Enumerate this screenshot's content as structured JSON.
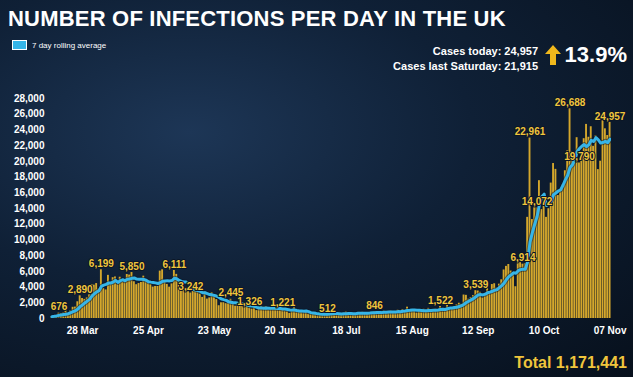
{
  "chart_data": {
    "type": "bar",
    "title": "NUMBER OF INFECTIONS PER DAY IN THE UK",
    "annotations": [
      "Cases today: 24,957",
      "Cases last Saturday: 21,915",
      "13.9%",
      "Total 1,171,441"
    ],
    "categories": [
      null,
      null,
      null,
      null,
      null,
      null,
      null,
      null,
      null,
      null,
      null,
      null,
      null,
      "28 Mar",
      null,
      null,
      null,
      null,
      null,
      null,
      null,
      null,
      null,
      null,
      null,
      null,
      null,
      null,
      null,
      null,
      null,
      null,
      null,
      null,
      null,
      null,
      null,
      null,
      null,
      null,
      null,
      "25 Apr",
      null,
      null,
      null,
      null,
      null,
      null,
      null,
      null,
      null,
      null,
      null,
      null,
      null,
      null,
      null,
      null,
      null,
      null,
      null,
      null,
      null,
      null,
      null,
      null,
      null,
      null,
      null,
      "23 May",
      null,
      null,
      null,
      null,
      null,
      null,
      null,
      null,
      null,
      null,
      null,
      null,
      null,
      null,
      null,
      null,
      null,
      null,
      null,
      null,
      null,
      null,
      null,
      null,
      null,
      null,
      null,
      "20 Jun",
      null,
      null,
      null,
      null,
      null,
      null,
      null,
      null,
      null,
      null,
      null,
      null,
      null,
      null,
      null,
      null,
      null,
      null,
      null,
      null,
      null,
      null,
      null,
      null,
      null,
      null,
      null,
      "18 Jul",
      null,
      null,
      null,
      null,
      null,
      null,
      null,
      null,
      null,
      null,
      null,
      null,
      null,
      null,
      null,
      null,
      null,
      null,
      null,
      null,
      null,
      null,
      null,
      null,
      null,
      null,
      null,
      "15 Aug",
      null,
      null,
      null,
      null,
      null,
      null,
      null,
      null,
      null,
      null,
      null,
      null,
      null,
      null,
      null,
      null,
      null,
      null,
      null,
      null,
      null,
      null,
      null,
      null,
      null,
      null,
      null,
      "12 Sep",
      null,
      null,
      null,
      null,
      null,
      null,
      null,
      null,
      null,
      null,
      null,
      null,
      null,
      null,
      null,
      null,
      null,
      null,
      null,
      null,
      null,
      null,
      null,
      null,
      null,
      null,
      null,
      "10 Oct",
      null,
      null,
      null,
      null,
      null,
      null,
      null,
      null,
      null,
      null,
      null,
      null,
      null,
      null,
      null,
      null,
      null,
      null,
      null,
      null,
      null,
      null,
      null,
      null,
      null,
      null,
      null,
      "07 Nov"
    ],
    "series": [
      {
        "type": "bar",
        "color": "#d4a72c",
        "values": [
          232,
          152,
          407,
          676,
          643,
          714,
          1035,
          665,
          967,
          1427,
          1452,
          2129,
          2890,
          2546,
          2433,
          2619,
          3009,
          4324,
          4244,
          4450,
          3735,
          6199,
          3802,
          3634,
          5491,
          4344,
          5195,
          5288,
          4342,
          5252,
          4603,
          4617,
          5599,
          5525,
          5850,
          4676,
          4301,
          4451,
          4583,
          5386,
          4913,
          4463,
          4309,
          3996,
          4076,
          4076,
          6032,
          6201,
          4806,
          4339,
          3985,
          4406,
          6111,
          5614,
          4649,
          3896,
          3923,
          3877,
          3403,
          3242,
          3446,
          3560,
          3451,
          3142,
          2684,
          3412,
          2472,
          2615,
          3287,
          2959,
          2409,
          1625,
          2004,
          2013,
          1887,
          2095,
          2445,
          1936,
          1570,
          1613,
          1871,
          1805,
          1650,
          1557,
          1326,
          1205,
          1387,
          1003,
          1266,
          1541,
          1425,
          1514,
          1056,
          1279,
          1115,
          1218,
          1346,
          1295,
          1221,
          958,
          874,
          653,
          1118,
          1380,
          890,
          901,
          815,
          689,
          829,
          576,
          544,
          624,
          516,
          352,
          581,
          630,
          642,
          512,
          820,
          650,
          530,
          598,
          538,
          463,
          687,
          827,
          726,
          580,
          445,
          560,
          769,
          767,
          798,
          747,
          685,
          581,
          763,
          846,
          880,
          744,
          743,
          938,
          670,
          892,
          950,
          871,
          758,
          1062,
          816,
          1148,
          1009,
          1441,
          1062,
          1012,
          1040,
          713,
          1089,
          812,
          1182,
          1033,
          1288,
          1041,
          853,
          1184,
          1048,
          1522,
          1276,
          1108,
          1715,
          1406,
          1295,
          1508,
          1735,
          1940,
          1813,
          2988,
          2948,
          2460,
          2659,
          2919,
          3539,
          3497,
          3330,
          2621,
          3105,
          3991,
          3395,
          4322,
          4422,
          3899,
          4368,
          4926,
          6178,
          6634,
          6874,
          6042,
          5693,
          4044,
          7143,
          7108,
          6914,
          6968,
          12872,
          22961,
          12594,
          14542,
          14072,
          17540,
          13864,
          15166,
          12872,
          13972,
          17234,
          19724,
          18980,
          15650,
          16171,
          16982,
          18804,
          21331,
          26688,
          21242,
          20530,
          23012,
          19790,
          20890,
          22885,
          24701,
          23065,
          24405,
          21915,
          23254,
          18950,
          20018,
          25177,
          24141,
          23287,
          24957
        ],
        "value_labels": [
          null,
          null,
          null,
          "676",
          null,
          null,
          null,
          null,
          null,
          null,
          null,
          null,
          "2,890",
          null,
          null,
          null,
          null,
          null,
          null,
          null,
          null,
          "6,199",
          null,
          null,
          null,
          null,
          null,
          null,
          null,
          null,
          null,
          null,
          null,
          null,
          "5,850",
          null,
          null,
          null,
          null,
          null,
          null,
          null,
          null,
          null,
          null,
          null,
          null,
          null,
          null,
          null,
          null,
          null,
          "6,111",
          null,
          null,
          null,
          null,
          null,
          null,
          "3,242",
          null,
          null,
          null,
          null,
          null,
          null,
          null,
          null,
          null,
          null,
          null,
          null,
          null,
          null,
          null,
          null,
          "2,445",
          null,
          null,
          null,
          null,
          null,
          null,
          null,
          "1,326",
          null,
          null,
          null,
          null,
          null,
          null,
          null,
          null,
          null,
          null,
          null,
          null,
          null,
          "1,221",
          null,
          null,
          null,
          null,
          null,
          null,
          null,
          null,
          null,
          null,
          null,
          null,
          null,
          null,
          null,
          null,
          null,
          null,
          "512",
          null,
          null,
          null,
          null,
          null,
          null,
          null,
          null,
          null,
          null,
          null,
          null,
          null,
          null,
          null,
          null,
          null,
          null,
          null,
          "846",
          null,
          null,
          null,
          null,
          null,
          null,
          null,
          null,
          null,
          null,
          null,
          null,
          null,
          null,
          null,
          null,
          null,
          null,
          null,
          null,
          null,
          null,
          null,
          null,
          null,
          null,
          null,
          "1,522",
          null,
          null,
          null,
          null,
          null,
          null,
          null,
          null,
          null,
          null,
          null,
          null,
          null,
          null,
          "3,539",
          null,
          null,
          null,
          null,
          null,
          null,
          null,
          null,
          null,
          null,
          null,
          null,
          null,
          null,
          null,
          null,
          null,
          null,
          null,
          "6,914",
          null,
          null,
          "22,961",
          null,
          null,
          "14,072",
          null,
          null,
          null,
          null,
          null,
          null,
          null,
          null,
          null,
          null,
          null,
          null,
          null,
          "26,688",
          null,
          null,
          null,
          "19,790",
          null,
          null,
          null,
          null,
          null,
          null,
          null,
          null,
          null,
          null,
          null,
          null,
          "24,957"
        ]
      },
      {
        "name": "7 day rolling average",
        "type": "line",
        "color": "#36b5e8",
        "values": [
          240,
          280,
          330,
          400,
          450,
          500,
          551,
          613,
          730,
          875,
          986,
          1198,
          1509,
          1725,
          1978,
          2214,
          2440,
          2850,
          3152,
          3375,
          3545,
          4083,
          4252,
          4341,
          4508,
          4522,
          4629,
          4850,
          4585,
          4792,
          4931,
          4806,
          4985,
          5032,
          5113,
          5160,
          5024,
          5003,
          4998,
          4967,
          4880,
          4682,
          4629,
          4586,
          4532,
          4460,
          4552,
          4736,
          4785,
          4789,
          4788,
          4835,
          5126,
          5066,
          4844,
          4714,
          4655,
          4639,
          4496,
          4086,
          3777,
          3621,
          3557,
          3446,
          3275,
          3277,
          3167,
          3048,
          3009,
          2939,
          2834,
          2683,
          2482,
          2416,
          2312,
          2142,
          2068,
          2001,
          1993,
          1937,
          1917,
          1905,
          1841,
          1715,
          1627,
          1575,
          1543,
          1419,
          1342,
          1326,
          1308,
          1334,
          1313,
          1298,
          1314,
          1307,
          1279,
          1260,
          1219,
          1205,
          1147,
          1081,
          1066,
          1071,
          1013,
          968,
          947,
          921,
          946,
          869,
          749,
          711,
          656,
          590,
          575,
          546,
          556,
          551,
          579,
          598,
          624,
          626,
          613,
          587,
          612,
          613,
          624,
          631,
          609,
          613,
          656,
          668,
          664,
          667,
          682,
          701,
          730,
          741,
          757,
          749,
          749,
          785,
          798,
          816,
          831,
          830,
          832,
          877,
          860,
          928,
          945,
          1015,
          1042,
          1079,
          1075,
          1061,
          1052,
          1024,
          987,
          983,
          1022,
          1023,
          1043,
          1056,
          1090,
          1138,
          1173,
          1147,
          1244,
          1323,
          1339,
          1404,
          1435,
          1530,
          1630,
          1812,
          2032,
          2199,
          2363,
          2532,
          2761,
          3001,
          3050,
          3004,
          3096,
          3286,
          3354,
          3466,
          3598,
          3679,
          3929,
          4189,
          4501,
          4964,
          5329,
          5560,
          5816,
          5770,
          6087,
          6220,
          6260,
          6273,
          7249,
          9716,
          10937,
          11994,
          12989,
          14507,
          15492,
          15820,
          14379,
          14575,
          14960,
          15767,
          15973,
          16228,
          16372,
          16959,
          17649,
          18235,
          19229,
          19553,
          20250,
          21227,
          21628,
          21926,
          22148,
          21864,
          22125,
          22678,
          22522,
          23016,
          22739,
          22330,
          22398,
          22551,
          22392,
          22826
        ]
      }
    ],
    "ylim": [
      0,
      28000
    ],
    "yticks": [
      0,
      {
        "value": 2000,
        "label": "2,000"
      },
      {
        "value": 4000,
        "label": "4,000"
      },
      {
        "value": 6000,
        "label": "6,000"
      },
      {
        "value": 8000,
        "label": "8,000"
      },
      {
        "value": 10000,
        "label": "10,000"
      },
      {
        "value": 12000,
        "label": "12,000"
      },
      {
        "value": 14000,
        "label": "14,000"
      },
      {
        "value": 16000,
        "label": "16,000"
      },
      {
        "value": 18000,
        "label": "18,000"
      },
      {
        "value": 20000,
        "label": "20,000"
      },
      {
        "value": 22000,
        "label": "22,000"
      },
      {
        "value": 24000,
        "label": "24,000"
      },
      {
        "value": 26000,
        "label": "26,000"
      },
      {
        "value": 28000,
        "label": "28,000"
      }
    ],
    "grid": false,
    "legend": "upper left",
    "data_labels": true
  }
}
